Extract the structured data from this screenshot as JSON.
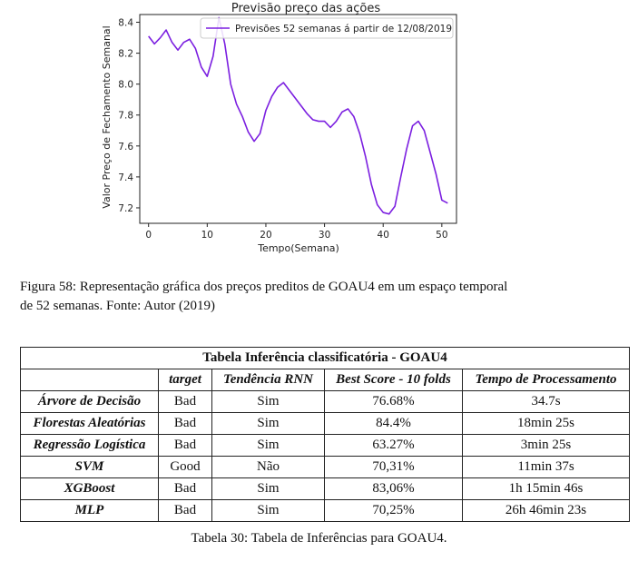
{
  "figure": {
    "caption_line1": "Figura 58: Representação gráfica dos preços preditos de GOAU4 em um espaço temporal",
    "caption_line2": "de 52 semanas. Fonte: Autor (2019)"
  },
  "chart_data": {
    "type": "line",
    "title": "Previsão preço das ações",
    "xlabel": "Tempo(Semana)",
    "ylabel": "Valor Preço de Fechamento Semanal",
    "xlim": [
      -1.5,
      52.5
    ],
    "ylim": [
      7.1,
      8.45
    ],
    "xticks": [
      0,
      10,
      20,
      30,
      40,
      50
    ],
    "yticks": [
      7.2,
      7.4,
      7.6,
      7.8,
      8.0,
      8.2,
      8.4
    ],
    "ytick_labels": [
      "7.2",
      "7.4",
      "7.6",
      "7.8",
      "8.0",
      "8.2",
      "8.4"
    ],
    "xtick_labels": [
      "0",
      "10",
      "20",
      "30",
      "40",
      "50"
    ],
    "grid": false,
    "legend_position": "top-right",
    "series_color": "#7b1fe0",
    "series": [
      {
        "name": "Previsões 52 semanas á partir de 12/08/2019",
        "x": [
          0,
          1,
          2,
          3,
          4,
          5,
          6,
          7,
          8,
          9,
          10,
          11,
          12,
          13,
          14,
          15,
          16,
          17,
          18,
          19,
          20,
          21,
          22,
          23,
          24,
          25,
          26,
          27,
          28,
          29,
          30,
          31,
          32,
          33,
          34,
          35,
          36,
          37,
          38,
          39,
          40,
          41,
          42,
          43,
          44,
          45,
          46,
          47,
          48,
          49,
          50,
          51
        ],
        "y": [
          8.31,
          8.26,
          8.3,
          8.35,
          8.27,
          8.22,
          8.27,
          8.29,
          8.23,
          8.11,
          8.05,
          8.18,
          8.43,
          8.26,
          8.0,
          7.87,
          7.79,
          7.69,
          7.63,
          7.68,
          7.83,
          7.92,
          7.98,
          8.01,
          7.96,
          7.91,
          7.86,
          7.81,
          7.77,
          7.76,
          7.76,
          7.72,
          7.76,
          7.82,
          7.84,
          7.79,
          7.68,
          7.53,
          7.35,
          7.22,
          7.17,
          7.16,
          7.21,
          7.4,
          7.58,
          7.73,
          7.76,
          7.7,
          7.56,
          7.42,
          7.25,
          7.23
        ]
      }
    ]
  },
  "table": {
    "title": "Tabela Inferência classificatória - GOAU4",
    "headers": [
      "",
      "target",
      "Tendência RNN",
      "Best Score - 10 folds",
      "Tempo de Processamento"
    ],
    "rows": [
      {
        "name": "Árvore de Decisão",
        "target": "Bad",
        "trend": "Sim",
        "score": "76.68%",
        "time": "34.7s"
      },
      {
        "name": "Florestas Aleatórias",
        "target": "Bad",
        "trend": "Sim",
        "score": "84.4%",
        "time": "18min 25s"
      },
      {
        "name": "Regressão Logística",
        "target": "Bad",
        "trend": "Sim",
        "score": "63.27%",
        "time": "3min 25s"
      },
      {
        "name": "SVM",
        "target": "Good",
        "trend": "Não",
        "score": "70,31%",
        "time": "11min 37s"
      },
      {
        "name": "XGBoost",
        "target": "Bad",
        "trend": "Sim",
        "score": "83,06%",
        "time": "1h 15min 46s"
      },
      {
        "name": "MLP",
        "target": "Bad",
        "trend": "Sim",
        "score": "70,25%",
        "time": "26h 46min 23s"
      }
    ],
    "caption": "Tabela 30: Tabela de Inferências para GOAU4."
  }
}
